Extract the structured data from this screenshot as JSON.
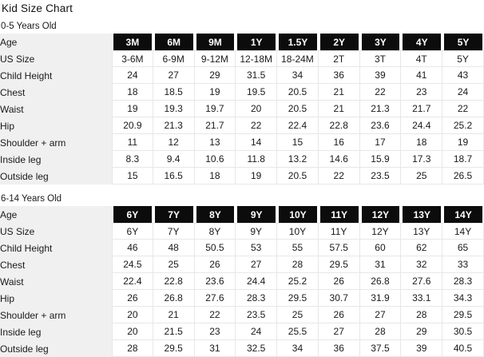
{
  "page_title": "Kid Size Chart",
  "colors": {
    "header-bg": "#0c0c0c",
    "header-text": "#ffffff",
    "label-bg": "#f0f0f0",
    "border": "#e7e7e7",
    "text": "#1a1a1a"
  },
  "sections": [
    {
      "heading": "0-5 Years Old",
      "age_label": "Age",
      "ages": [
        "3M",
        "6M",
        "9M",
        "1Y",
        "1.5Y",
        "2Y",
        "3Y",
        "4Y",
        "5Y"
      ],
      "rows": [
        {
          "label": "US Size",
          "values": [
            "3-6M",
            "6-9M",
            "9-12M",
            "12-18M",
            "18-24M",
            "2T",
            "3T",
            "4T",
            "5Y"
          ]
        },
        {
          "label": "Child Height",
          "values": [
            "24",
            "27",
            "29",
            "31.5",
            "34",
            "36",
            "39",
            "41",
            "43"
          ]
        },
        {
          "label": "Chest",
          "values": [
            "18",
            "18.5",
            "19",
            "19.5",
            "20.5",
            "21",
            "22",
            "23",
            "24"
          ]
        },
        {
          "label": "Waist",
          "values": [
            "19",
            "19.3",
            "19.7",
            "20",
            "20.5",
            "21",
            "21.3",
            "21.7",
            "22"
          ]
        },
        {
          "label": "Hip",
          "values": [
            "20.9",
            "21.3",
            "21.7",
            "22",
            "22.4",
            "22.8",
            "23.6",
            "24.4",
            "25.2"
          ]
        },
        {
          "label": "Shoulder + arm",
          "values": [
            "11",
            "12",
            "13",
            "14",
            "15",
            "16",
            "17",
            "18",
            "19"
          ]
        },
        {
          "label": "Inside leg",
          "values": [
            "8.3",
            "9.4",
            "10.6",
            "11.8",
            "13.2",
            "14.6",
            "15.9",
            "17.3",
            "18.7"
          ]
        },
        {
          "label": "Outside leg",
          "values": [
            "15",
            "16.5",
            "18",
            "19",
            "20.5",
            "22",
            "23.5",
            "25",
            "26.5"
          ]
        }
      ]
    },
    {
      "heading": "6-14 Years Old",
      "age_label": "Age",
      "ages": [
        "6Y",
        "7Y",
        "8Y",
        "9Y",
        "10Y",
        "11Y",
        "12Y",
        "13Y",
        "14Y"
      ],
      "rows": [
        {
          "label": "US Size",
          "values": [
            "6Y",
            "7Y",
            "8Y",
            "9Y",
            "10Y",
            "11Y",
            "12Y",
            "13Y",
            "14Y"
          ]
        },
        {
          "label": "Child Height",
          "values": [
            "46",
            "48",
            "50.5",
            "53",
            "55",
            "57.5",
            "60",
            "62",
            "65"
          ]
        },
        {
          "label": "Chest",
          "values": [
            "24.5",
            "25",
            "26",
            "27",
            "28",
            "29.5",
            "31",
            "32",
            "33"
          ]
        },
        {
          "label": "Waist",
          "values": [
            "22.4",
            "22.8",
            "23.6",
            "24.4",
            "25.2",
            "26",
            "26.8",
            "27.6",
            "28.3"
          ]
        },
        {
          "label": "Hip",
          "values": [
            "26",
            "26.8",
            "27.6",
            "28.3",
            "29.5",
            "30.7",
            "31.9",
            "33.1",
            "34.3"
          ]
        },
        {
          "label": "Shoulder + arm",
          "values": [
            "20",
            "21",
            "22",
            "23.5",
            "25",
            "26",
            "27",
            "28",
            "29.5"
          ]
        },
        {
          "label": "Inside leg",
          "values": [
            "20",
            "21.5",
            "23",
            "24",
            "25.5",
            "27",
            "28",
            "29",
            "30.5"
          ]
        },
        {
          "label": "Outside leg",
          "values": [
            "28",
            "29.5",
            "31",
            "32.5",
            "34",
            "36",
            "37.5",
            "39",
            "40.5"
          ]
        }
      ]
    }
  ]
}
